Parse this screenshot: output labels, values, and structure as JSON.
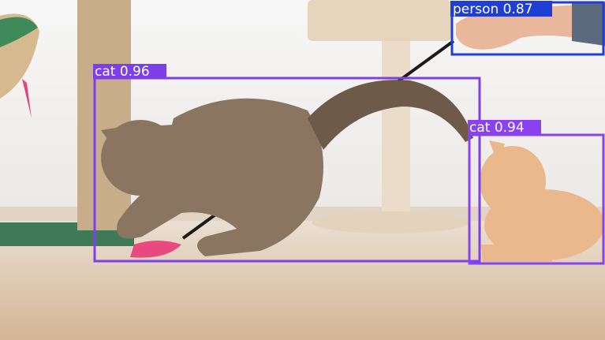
{
  "detections": [
    {
      "label": "person 0.87"
    },
    {
      "label": "cat 0.96"
    },
    {
      "label": "cat 0.94"
    }
  ]
}
